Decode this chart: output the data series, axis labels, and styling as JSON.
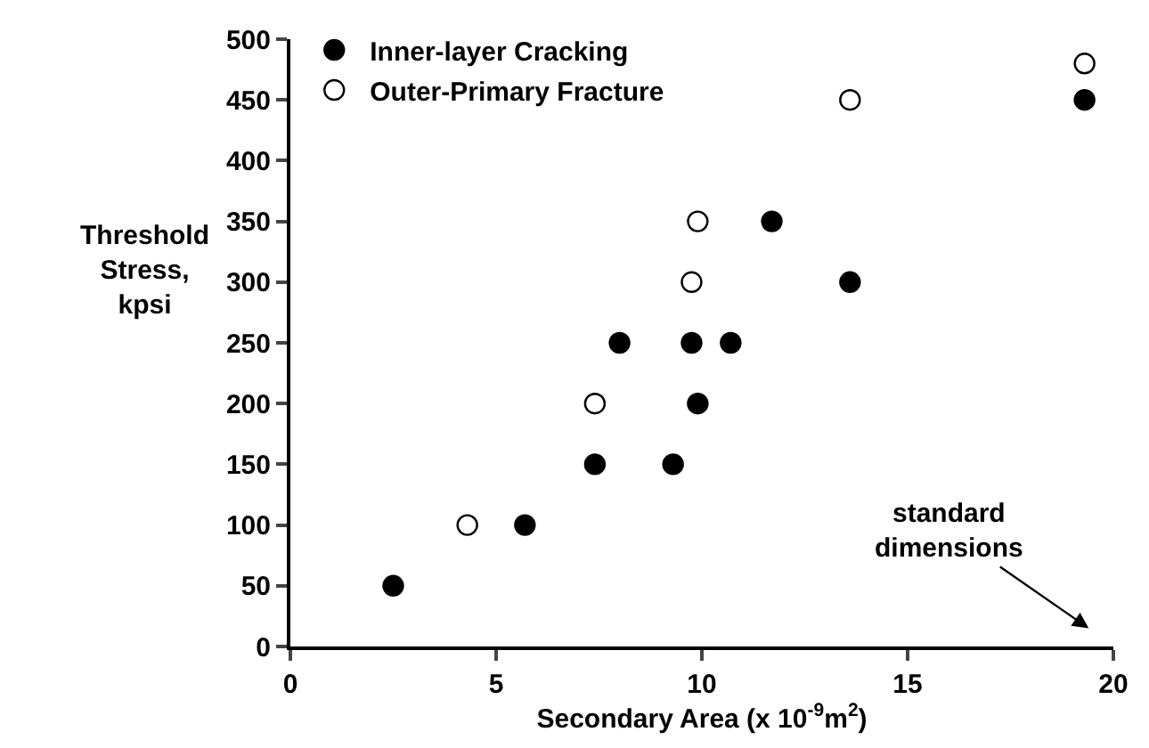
{
  "chart_data": {
    "type": "scatter",
    "xlabel": "Secondary Area (x 10$^{-9}$m$^{2}$)",
    "ylabel": "Threshold\nStress,\nkpsi",
    "xlim": [
      0,
      20
    ],
    "xticks": [
      0,
      5,
      10,
      15,
      20
    ],
    "ylim": [
      0,
      500
    ],
    "yticks": [
      0,
      50,
      100,
      150,
      200,
      250,
      300,
      350,
      400,
      450,
      500
    ],
    "legend": "top left",
    "marker": "circle",
    "series": [
      {
        "name": "Inner-layer Cracking",
        "color": "#000000",
        "x": [
          2.5,
          5.7,
          7.4,
          9.3,
          8.0,
          9.75,
          10.7,
          9.9,
          11.7,
          13.6,
          19.3
        ],
        "values": [
          50,
          100,
          150,
          150,
          250,
          250,
          250,
          200,
          350,
          300,
          450
        ]
      },
      {
        "name": "Outer-Primary Fracture",
        "color": "#ffffff",
        "x": [
          4.3,
          7.4,
          9.75,
          9.9,
          13.6,
          19.3
        ],
        "values": [
          100,
          200,
          300,
          350,
          450,
          480
        ]
      }
    ],
    "annotations": [
      "standard\ndimensions"
    ]
  }
}
